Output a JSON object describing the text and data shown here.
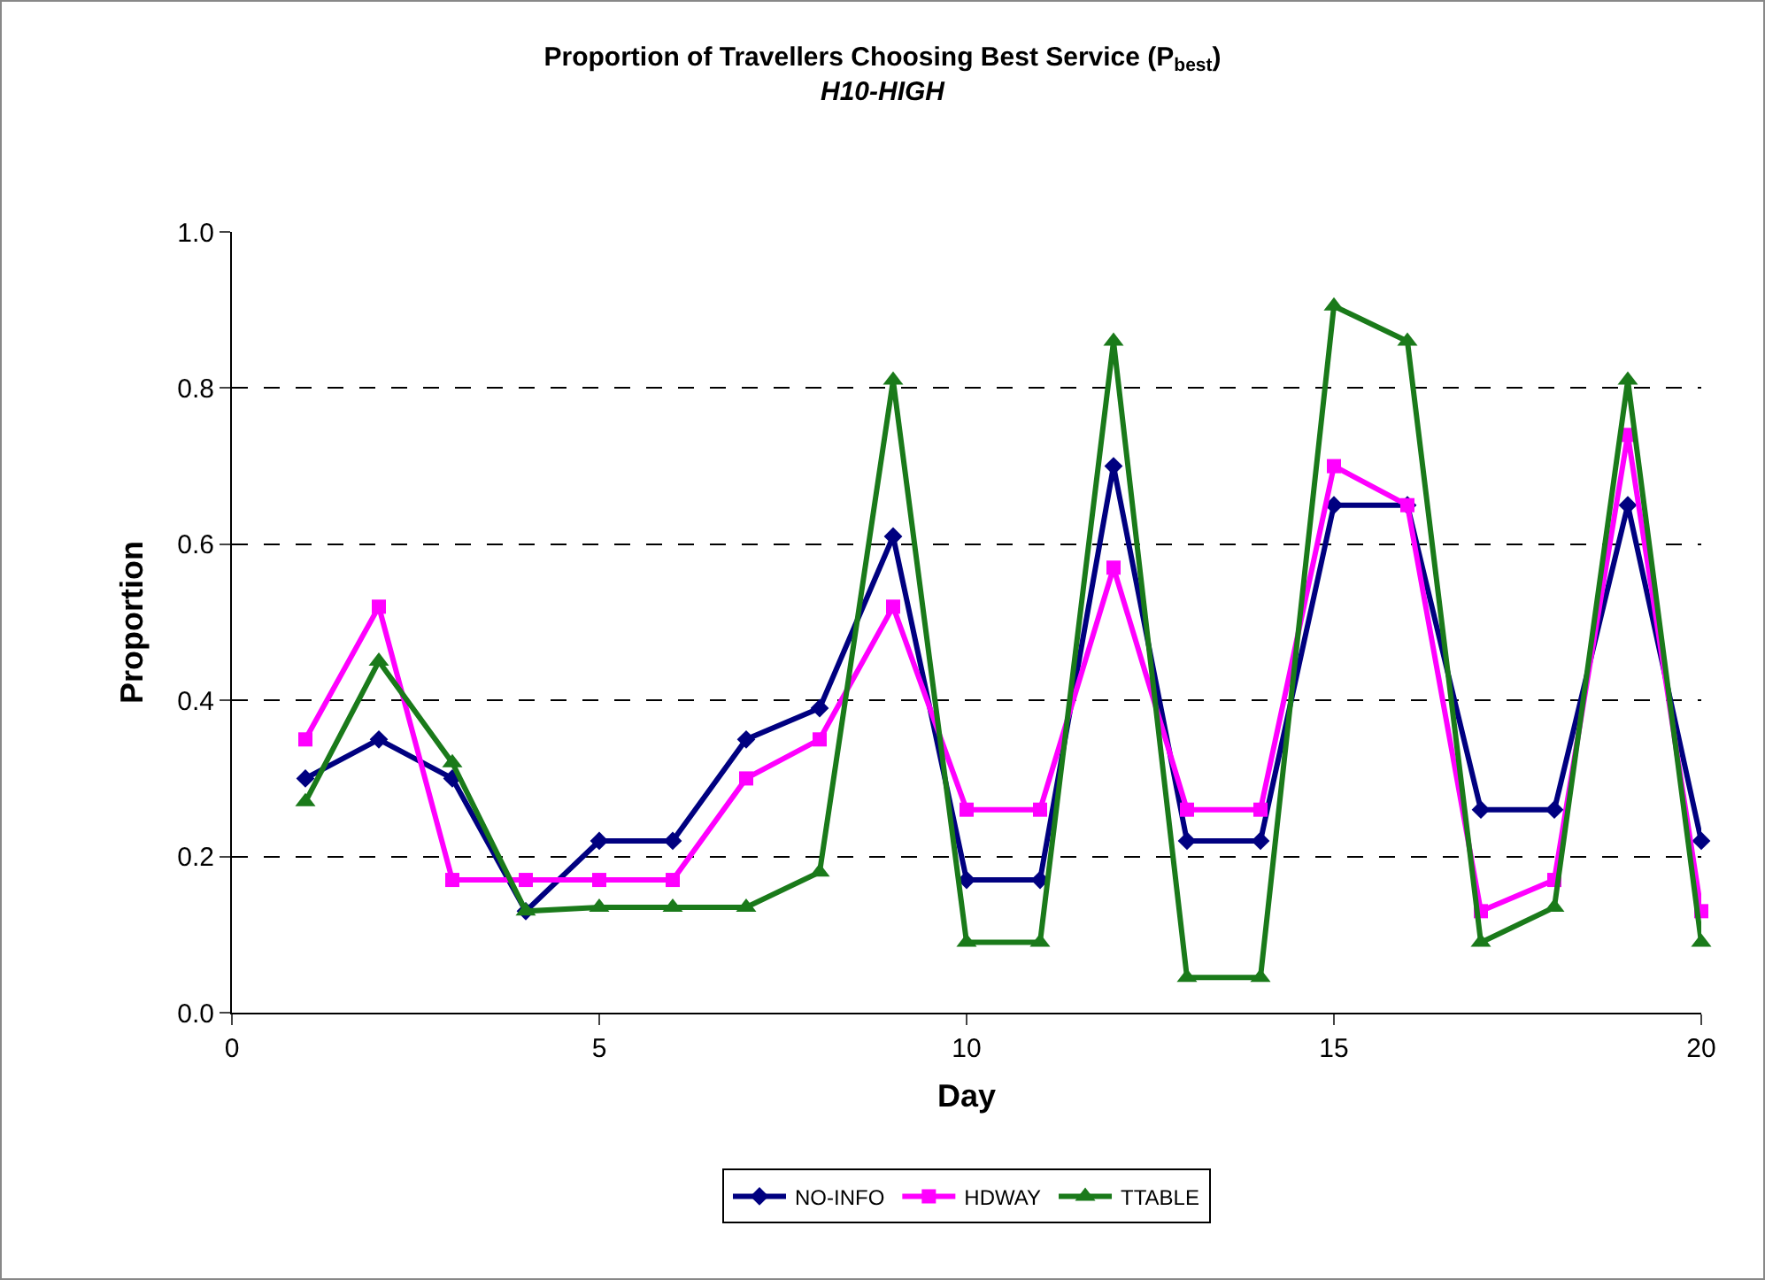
{
  "chart_data": {
    "type": "line",
    "title": "Proportion of Travellers Choosing Best Service (P$_{best}$)",
    "subtitle": "H10-HIGH",
    "xlabel": "Day",
    "ylabel": "Proportion",
    "x": [
      1,
      2,
      3,
      4,
      5,
      6,
      7,
      8,
      9,
      10,
      11,
      12,
      13,
      14,
      15,
      16,
      17,
      18,
      19,
      20
    ],
    "series": [
      {
        "name": "NO-INFO",
        "color": "#000080",
        "marker": "diamond",
        "values": [
          0.3,
          0.35,
          0.3,
          0.13,
          0.22,
          0.22,
          0.35,
          0.39,
          0.61,
          0.17,
          0.17,
          0.7,
          0.22,
          0.22,
          0.65,
          0.65,
          0.26,
          0.26,
          0.65,
          0.22
        ]
      },
      {
        "name": "HDWAY",
        "color": "#ff00ff",
        "marker": "square",
        "values": [
          0.35,
          0.52,
          0.17,
          0.17,
          0.17,
          0.17,
          0.3,
          0.35,
          0.52,
          0.26,
          0.26,
          0.57,
          0.26,
          0.26,
          0.7,
          0.65,
          0.13,
          0.17,
          0.74,
          0.13
        ]
      },
      {
        "name": "TTABLE",
        "color": "#1a7a1a",
        "marker": "triangle",
        "values": [
          0.27,
          0.45,
          0.32,
          0.13,
          0.135,
          0.135,
          0.135,
          0.18,
          0.81,
          0.09,
          0.09,
          0.86,
          0.045,
          0.045,
          0.905,
          0.86,
          0.09,
          0.135,
          0.81,
          0.09
        ]
      }
    ],
    "xlim": [
      0,
      20
    ],
    "xticks": [
      0,
      5,
      10,
      15,
      20
    ],
    "ylim": [
      0,
      1
    ],
    "yticks": [
      {
        "value": 0,
        "label": "0.0"
      },
      0.2,
      0.4,
      0.6,
      0.8,
      {
        "value": 1,
        "label": "1.0"
      }
    ],
    "grid": "y",
    "legend": "bottom",
    "line_style": "solid"
  }
}
